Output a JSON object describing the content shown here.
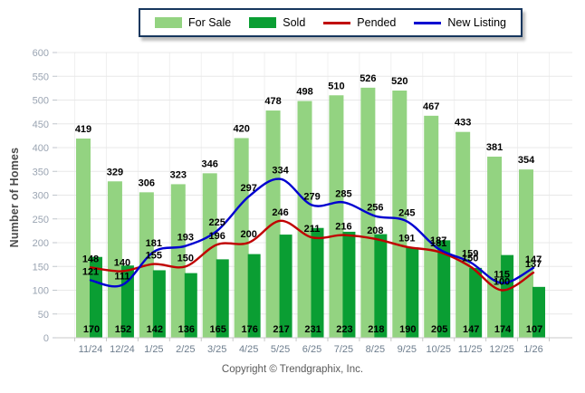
{
  "legend": {
    "items": [
      {
        "label": "For Sale",
        "type": "bar",
        "color": "#93D381"
      },
      {
        "label": "Sold",
        "type": "bar",
        "color": "#0A9E33"
      },
      {
        "label": "Pended",
        "type": "line",
        "color": "#C00000"
      },
      {
        "label": "New Listing",
        "type": "line",
        "color": "#0000D0"
      }
    ]
  },
  "ylabel": "Number of Homes",
  "footer": {
    "copyright": "Copyright © Trendgraphix, Inc."
  },
  "chart_data": {
    "type": "bar",
    "subtype": "grouped bars with overlaid smoothed lines",
    "categories": [
      "11/24",
      "12/24",
      "1/25",
      "2/25",
      "3/25",
      "4/25",
      "5/25",
      "6/25",
      "7/25",
      "8/25",
      "9/25",
      "10/25",
      "11/25",
      "12/25",
      "1/26"
    ],
    "series": [
      {
        "name": "For Sale",
        "type": "bar",
        "color": "#93D381",
        "values": [
          419,
          329,
          306,
          323,
          346,
          420,
          478,
          498,
          510,
          526,
          520,
          467,
          433,
          381,
          354
        ]
      },
      {
        "name": "Sold",
        "type": "bar",
        "color": "#0A9E33",
        "values": [
          170,
          152,
          142,
          136,
          165,
          176,
          217,
          231,
          223,
          218,
          190,
          205,
          147,
          174,
          107
        ]
      },
      {
        "name": "Pended",
        "type": "line",
        "color": "#C00000",
        "values": [
          148,
          140,
          155,
          150,
          196,
          200,
          246,
          211,
          216,
          208,
          191,
          181,
          150,
          100,
          137
        ]
      },
      {
        "name": "New Listing",
        "type": "line",
        "color": "#0000D0",
        "values": [
          121,
          111,
          181,
          193,
          225,
          297,
          334,
          279,
          285,
          256,
          245,
          187,
          159,
          115,
          147
        ]
      }
    ],
    "title": "",
    "xlabel": "",
    "ylabel": "Number of Homes",
    "ylim": [
      0,
      600
    ],
    "ytick_step": 50,
    "grid": true,
    "legend_position": "top",
    "style": {
      "grid_color_h": "#e8e8e8",
      "grid_color_v": "#f0f0f0",
      "axis_color": "#c8c8c8",
      "ytick_label_color": "#9aa4b2",
      "xtick_label_color": "#6e7e8e",
      "data_label_color": "#000000"
    }
  }
}
